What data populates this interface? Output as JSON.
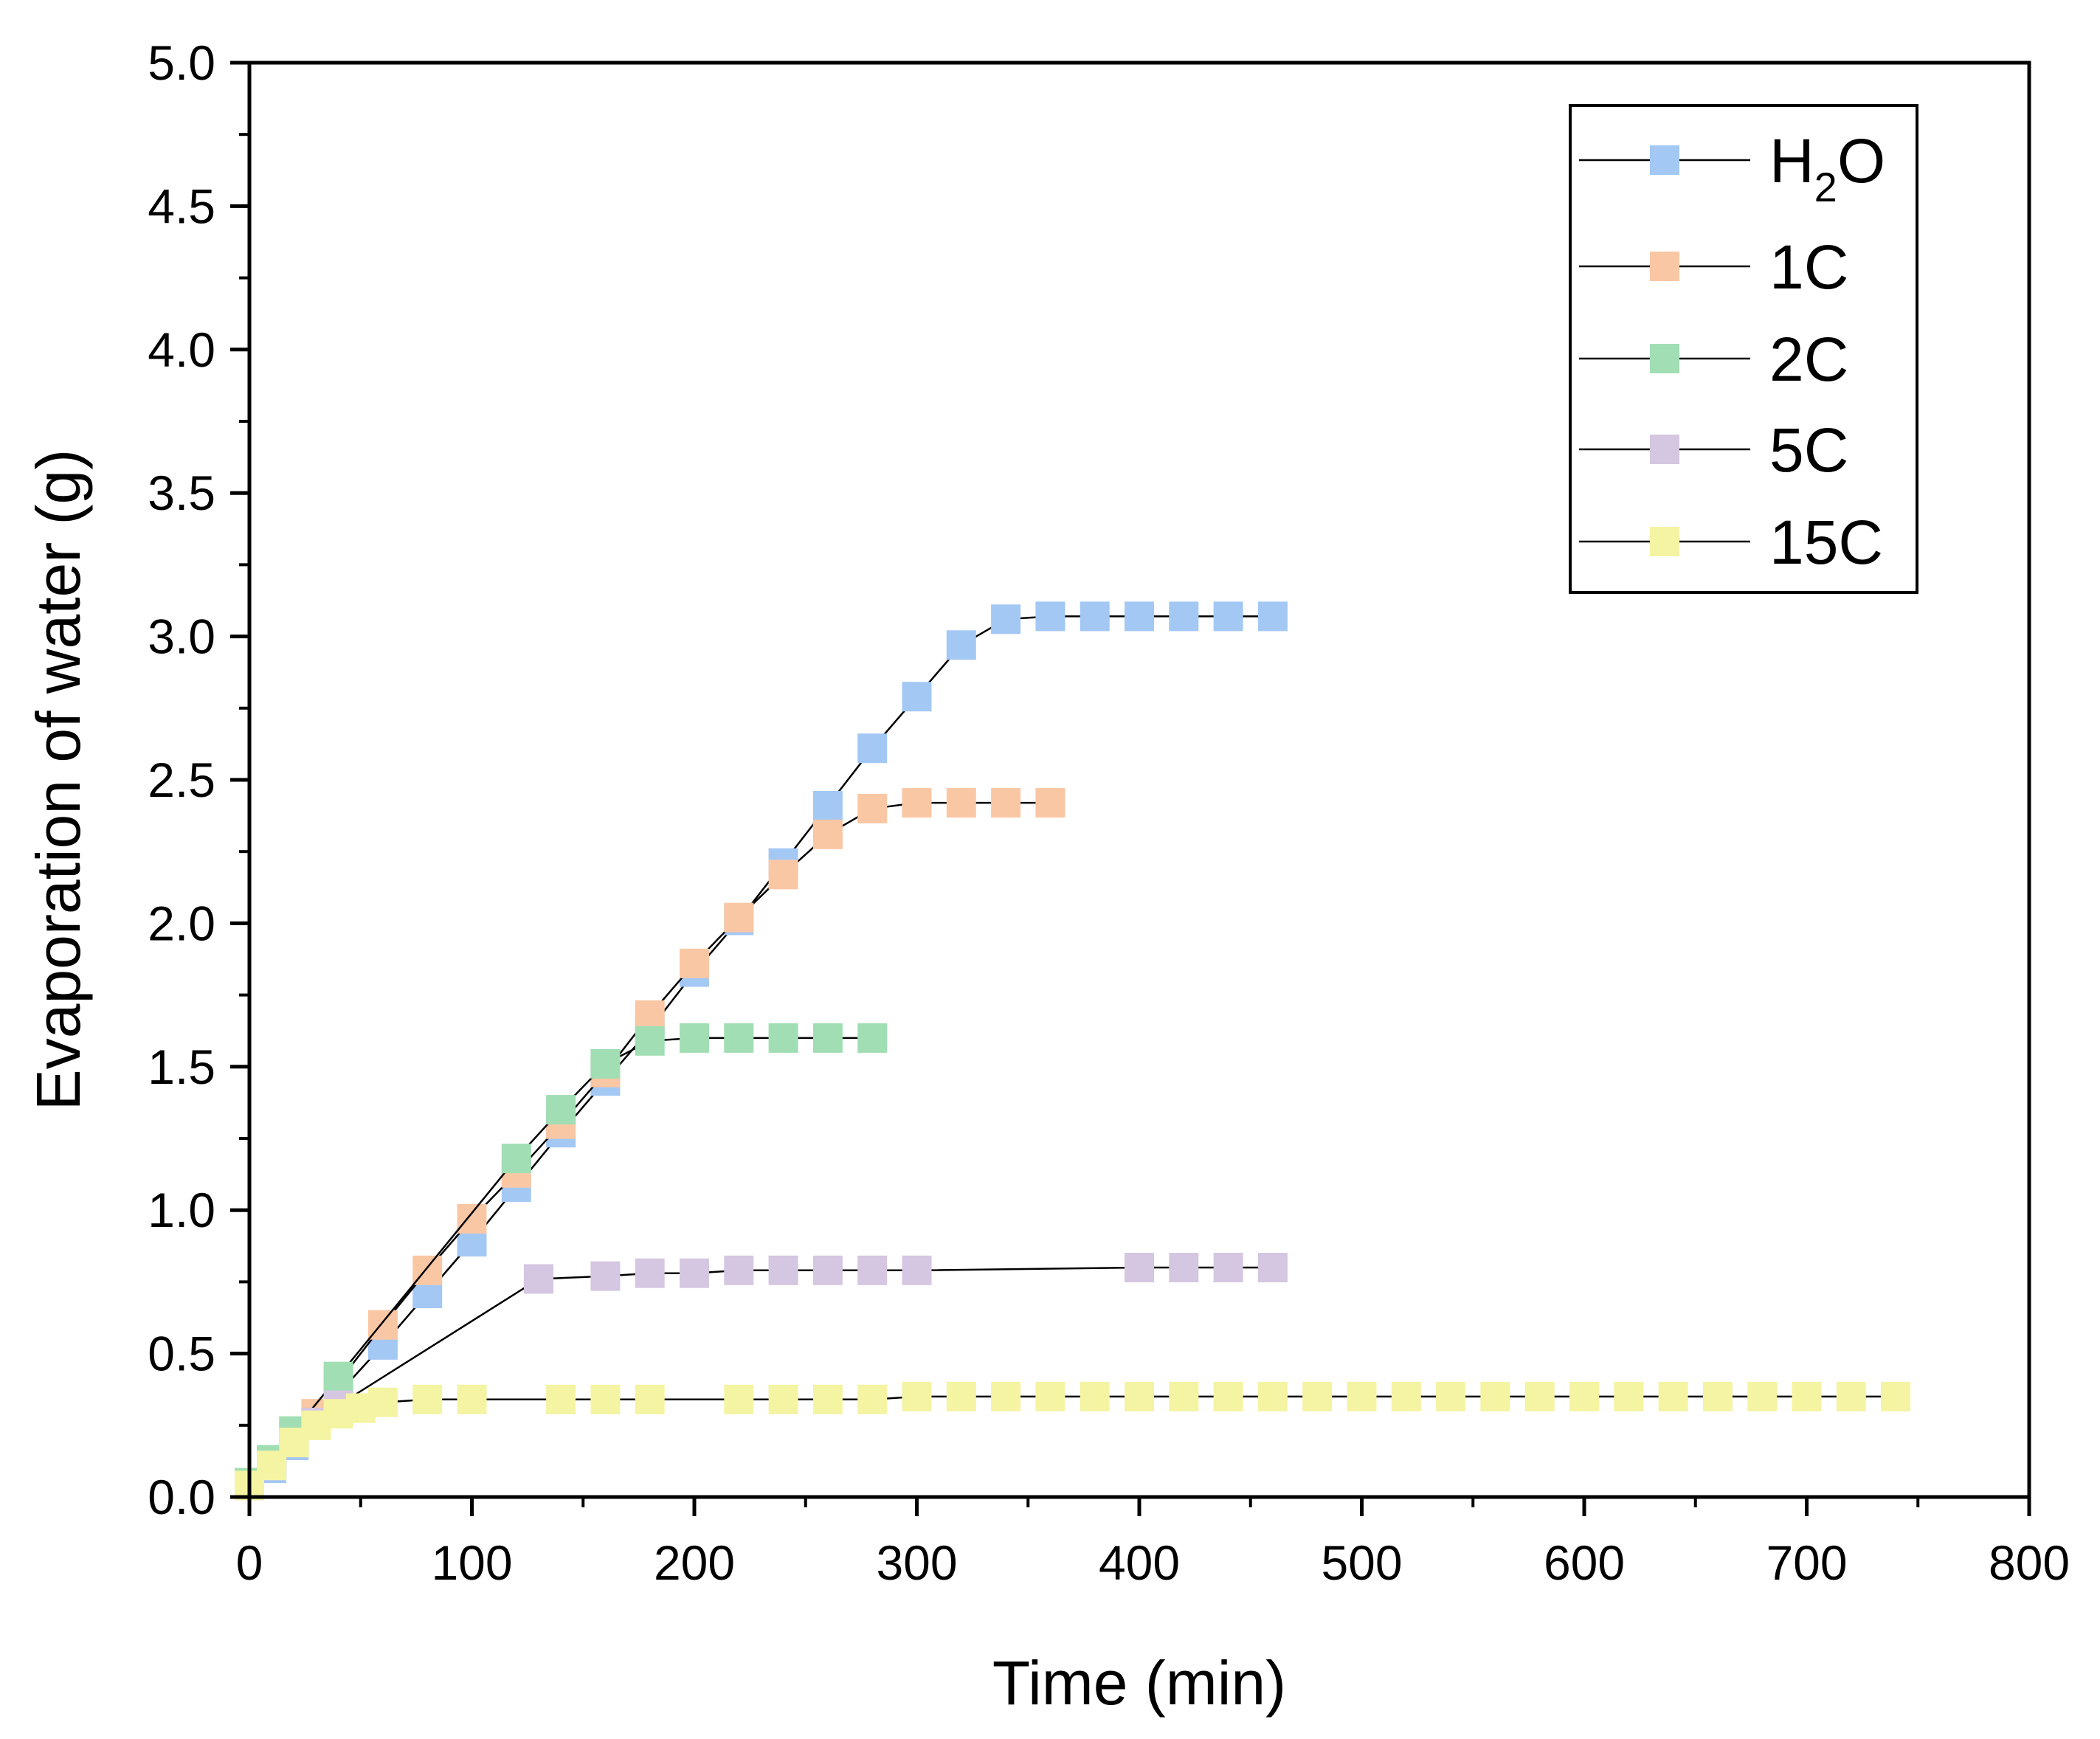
{
  "chart_data": {
    "type": "line",
    "title": "",
    "xlabel": "Time (min)",
    "ylabel": "Evaporation of water (g)",
    "xlim": [
      0,
      800
    ],
    "ylim": [
      0.0,
      5.0
    ],
    "x_ticks": [
      "0",
      "100",
      "200",
      "300",
      "400",
      "500",
      "600",
      "700",
      "800"
    ],
    "y_ticks": [
      "0.0",
      "0.5",
      "1.0",
      "1.5",
      "2.0",
      "2.5",
      "3.0",
      "3.5",
      "4.0",
      "4.5",
      "5.0"
    ],
    "grid": false,
    "legend_position": "top-right",
    "series": [
      {
        "name": "H2O",
        "legend_main": "H",
        "legend_sub": "2",
        "legend_tail": "O",
        "color": "#a3c8f4",
        "x": [
          0,
          10,
          20,
          30,
          40,
          60,
          80,
          100,
          120,
          140,
          160,
          180,
          200,
          220,
          240,
          260,
          280,
          300,
          320,
          340,
          360,
          380,
          400,
          420,
          440,
          460
        ],
        "y": [
          0.04,
          0.1,
          0.18,
          0.26,
          0.36,
          0.53,
          0.71,
          0.89,
          1.08,
          1.27,
          1.45,
          1.63,
          1.83,
          2.01,
          2.21,
          2.41,
          2.61,
          2.79,
          2.97,
          3.06,
          3.07,
          3.07,
          3.07,
          3.07,
          3.07,
          3.07
        ]
      },
      {
        "name": "1C",
        "legend_main": "1C",
        "legend_sub": "",
        "legend_tail": "",
        "color": "#fac7a4",
        "x": [
          0,
          10,
          20,
          30,
          40,
          60,
          80,
          100,
          120,
          140,
          160,
          180,
          200,
          220,
          240,
          260,
          280,
          300,
          320,
          340,
          360
        ],
        "y": [
          0.05,
          0.12,
          0.21,
          0.29,
          0.4,
          0.6,
          0.79,
          0.97,
          1.13,
          1.3,
          1.48,
          1.68,
          1.86,
          2.02,
          2.17,
          2.31,
          2.4,
          2.42,
          2.42,
          2.42,
          2.42
        ]
      },
      {
        "name": "2C",
        "legend_main": "2C",
        "legend_sub": "",
        "legend_tail": "",
        "color": "#a1deb3",
        "x": [
          0,
          10,
          20,
          40,
          120,
          140,
          160,
          180,
          200,
          220,
          240,
          260,
          280
        ],
        "y": [
          0.05,
          0.13,
          0.23,
          0.42,
          1.18,
          1.35,
          1.51,
          1.59,
          1.6,
          1.6,
          1.6,
          1.6,
          1.6
        ]
      },
      {
        "name": "5C",
        "legend_main": "5C",
        "legend_sub": "",
        "legend_tail": "",
        "color": "#d5c6e1",
        "x": [
          0,
          10,
          20,
          30,
          40,
          130,
          160,
          180,
          200,
          220,
          240,
          260,
          280,
          300,
          400,
          420,
          440,
          460
        ],
        "y": [
          0.04,
          0.11,
          0.19,
          0.26,
          0.32,
          0.76,
          0.77,
          0.78,
          0.78,
          0.79,
          0.79,
          0.79,
          0.79,
          0.79,
          0.8,
          0.8,
          0.8,
          0.8
        ]
      },
      {
        "name": "15C",
        "legend_main": "15C",
        "legend_sub": "",
        "legend_tail": "",
        "color": "#f4f4a3",
        "x": [
          0,
          10,
          20,
          30,
          40,
          50,
          60,
          80,
          100,
          140,
          160,
          180,
          220,
          240,
          260,
          280,
          300,
          320,
          340,
          360,
          380,
          400,
          420,
          440,
          460,
          480,
          500,
          520,
          540,
          560,
          580,
          600,
          620,
          640,
          660,
          680,
          700,
          720,
          740
        ],
        "y": [
          0.04,
          0.11,
          0.19,
          0.25,
          0.29,
          0.31,
          0.33,
          0.34,
          0.34,
          0.34,
          0.34,
          0.34,
          0.34,
          0.34,
          0.34,
          0.34,
          0.35,
          0.35,
          0.35,
          0.35,
          0.35,
          0.35,
          0.35,
          0.35,
          0.35,
          0.35,
          0.35,
          0.35,
          0.35,
          0.35,
          0.35,
          0.35,
          0.35,
          0.35,
          0.35,
          0.35,
          0.35,
          0.35,
          0.35
        ]
      }
    ]
  }
}
